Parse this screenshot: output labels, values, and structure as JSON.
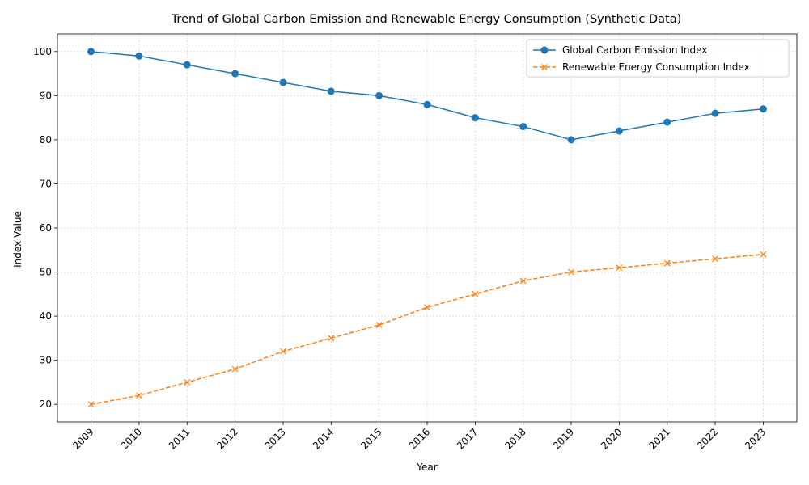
{
  "chart_data": {
    "type": "line",
    "title": "Trend of Global Carbon Emission and Renewable Energy Consumption (Synthetic Data)",
    "xlabel": "Year",
    "ylabel": "Index Value",
    "x": [
      2009,
      2010,
      2011,
      2012,
      2013,
      2014,
      2015,
      2016,
      2017,
      2018,
      2019,
      2020,
      2021,
      2022,
      2023
    ],
    "x_tick_labels": [
      "2009",
      "2010",
      "2011",
      "2012",
      "2013",
      "2014",
      "2015",
      "2016",
      "2017",
      "2018",
      "2019",
      "2020",
      "2021",
      "2022",
      "2023"
    ],
    "y_ticks": [
      20,
      30,
      40,
      50,
      60,
      70,
      80,
      90,
      100
    ],
    "ylim": [
      16,
      104
    ],
    "grid": true,
    "legend_position": "top-right",
    "series": [
      {
        "name": "Global Carbon Emission Index",
        "values": [
          100,
          99,
          97,
          95,
          93,
          91,
          90,
          88,
          85,
          83,
          80,
          82,
          84,
          86,
          87
        ],
        "color": "#1f77b4",
        "marker": "circle",
        "line_style": "solid"
      },
      {
        "name": "Renewable Energy Consumption Index",
        "values": [
          20,
          22,
          25,
          28,
          32,
          35,
          38,
          42,
          45,
          48,
          50,
          51,
          52,
          53,
          54
        ],
        "color": "#ff7f0e",
        "marker": "x",
        "line_style": "dashed"
      }
    ]
  }
}
